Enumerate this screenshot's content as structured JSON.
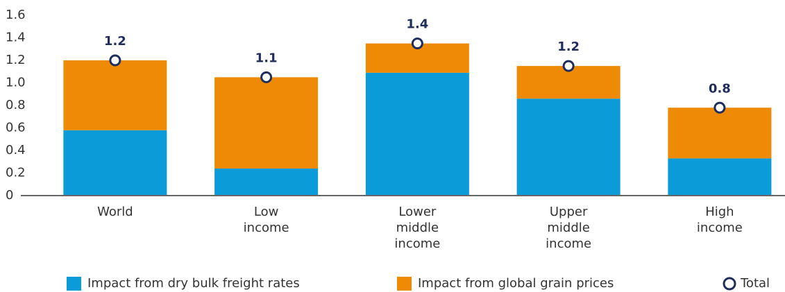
{
  "chart_data": {
    "type": "stacked_bar",
    "categories": [
      [
        "World"
      ],
      [
        "Low",
        "income"
      ],
      [
        "Lower",
        "middle",
        "income"
      ],
      [
        "Upper",
        "middle",
        "income"
      ],
      [
        "High",
        "income"
      ]
    ],
    "series": [
      {
        "name": "Impact from dry bulk freight rates",
        "color": "#0a9bd8",
        "values": [
          0.58,
          0.24,
          1.09,
          0.86,
          0.33
        ]
      },
      {
        "name": "Impact from global grain prices",
        "color": "#ef8a06",
        "values": [
          0.62,
          0.81,
          0.26,
          0.29,
          0.45
        ]
      },
      {
        "name": "Total",
        "type": "marker",
        "color": "#1f2d5c",
        "values": [
          1.2,
          1.05,
          1.35,
          1.15,
          0.78
        ],
        "value_labels": [
          "1.2",
          "1.1",
          "1.4",
          "1.2",
          "0.8"
        ]
      }
    ],
    "ylim": [
      0,
      1.6
    ],
    "yticks": [
      0,
      {
        "value": 0.2,
        "label": "0.2"
      },
      {
        "value": 0.4,
        "label": "0.4"
      },
      {
        "value": 0.6,
        "label": "0.6"
      },
      {
        "value": 0.8,
        "label": "0.8"
      },
      {
        "value": 1.0,
        "label": "1.0"
      },
      {
        "value": 1.2,
        "label": "1.2"
      },
      {
        "value": 1.4,
        "label": "1.4"
      },
      {
        "value": 1.6,
        "label": "1.6"
      }
    ],
    "legend": "bottom"
  }
}
